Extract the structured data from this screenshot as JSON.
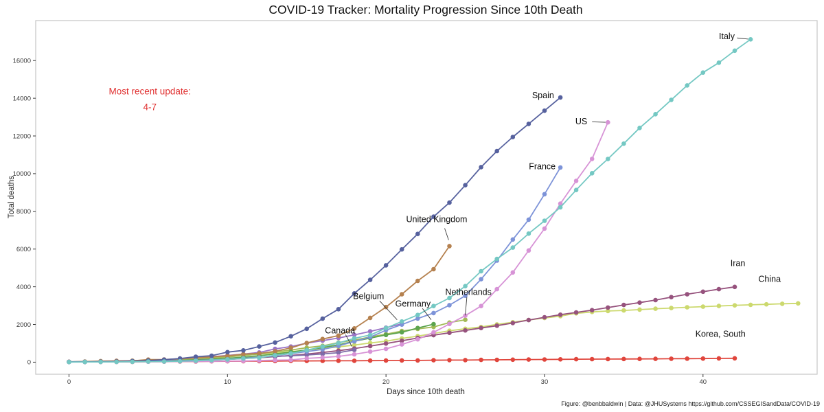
{
  "page": {
    "caption": "Figure: @benbbaldwin | Data: @JHUSystems https://github.com/CSSEGISandData/COVID-19"
  },
  "chart_data": {
    "type": "line",
    "title": "COVID-19 Tracker: Mortality Progression Since 10th Death",
    "xlabel": "Days since 10th death",
    "ylabel": "Total deaths",
    "xlim": [
      -2.1,
      47.2
    ],
    "ylim": [
      -640,
      18120
    ],
    "xticks": [
      0,
      10,
      20,
      30,
      40
    ],
    "yticks": [
      0,
      2000,
      4000,
      6000,
      8000,
      10000,
      12000,
      14000,
      16000
    ],
    "grid": false,
    "marker": "point",
    "x_meaning": "days since 10th death (one point per day, starting at day 0)",
    "annotation": {
      "lines": [
        "Most recent update:",
        "4-7"
      ],
      "x": 5.1,
      "y": 14210,
      "color": "#e03030"
    },
    "series": [
      {
        "name": "Korea, South",
        "color": "#e0453c",
        "values": [
          12,
          13,
          13,
          16,
          17,
          28,
          28,
          35,
          35,
          44,
          50,
          53,
          54,
          60,
          66,
          66,
          72,
          75,
          75,
          81,
          84,
          91,
          94,
          102,
          111,
          111,
          120,
          126,
          131,
          139,
          144,
          152,
          158,
          162,
          165,
          169,
          174,
          177,
          183,
          186,
          192,
          200,
          204
        ],
        "label": {
          "text": "Korea, South",
          "x": 41.1,
          "y": 1500,
          "anchor": "middle"
        }
      },
      {
        "name": "China",
        "color": "#ccd96e",
        "values": [
          17,
          25,
          41,
          56,
          80,
          106,
          132,
          170,
          213,
          259,
          304,
          361,
          425,
          490,
          563,
          637,
          722,
          811,
          908,
          1016,
          1113,
          1259,
          1380,
          1523,
          1665,
          1770,
          1868,
          2004,
          2118,
          2236,
          2345,
          2442,
          2592,
          2663,
          2715,
          2744,
          2788,
          2835,
          2870,
          2912,
          2945,
          2981,
          3012,
          3042,
          3070,
          3097,
          3119
        ],
        "label": {
          "text": "China",
          "x": 44.2,
          "y": 4410,
          "anchor": "middle"
        }
      },
      {
        "name": "Iran",
        "color": "#96527d",
        "values": [
          19,
          26,
          34,
          43,
          54,
          66,
          77,
          92,
          107,
          124,
          145,
          194,
          237,
          291,
          354,
          429,
          514,
          611,
          724,
          853,
          988,
          1135,
          1284,
          1433,
          1556,
          1685,
          1812,
          1934,
          2077,
          2234,
          2378,
          2517,
          2640,
          2757,
          2898,
          3036,
          3160,
          3294,
          3452,
          3603,
          3739,
          3872,
          3993
        ],
        "label": {
          "text": "Iran",
          "x": 42.2,
          "y": 5250,
          "anchor": "middle"
        }
      },
      {
        "name": "Canada",
        "color": "#7e6ba8",
        "values": [
          20,
          25,
          30,
          35,
          54,
          64,
          80,
          101,
          120,
          151,
          173,
          218,
          259,
          308,
          339,
          381,
          433,
          503,
          653
        ],
        "label": {
          "text": "Canada",
          "x": 17.1,
          "y": 1680,
          "anchor": "middle"
        },
        "leader": [
          17.45,
          1460,
          17.85,
          830
        ]
      },
      {
        "name": "Netherlands",
        "color": "#a3bb56",
        "values": [
          12,
          20,
          24,
          43,
          58,
          76,
          106,
          136,
          179,
          213,
          276,
          356,
          434,
          546,
          639,
          771,
          864,
          1039,
          1173,
          1339,
          1487,
          1651,
          1766,
          1867,
          2101,
          2248
        ],
        "label": {
          "text": "Netherlands",
          "x": 25.2,
          "y": 3720,
          "anchor": "middle"
        },
        "leader": [
          25.1,
          3450,
          25.0,
          2480
        ]
      },
      {
        "name": "Germany",
        "color": "#5ca44f",
        "values": [
          11,
          17,
          24,
          28,
          44,
          67,
          84,
          94,
          123,
          157,
          206,
          267,
          342,
          433,
          533,
          645,
          775,
          920,
          1107,
          1275,
          1444,
          1584,
          1810,
          2016
        ],
        "label": {
          "text": "Germany",
          "x": 21.7,
          "y": 3100,
          "anchor": "middle"
        },
        "leader": [
          22.3,
          2850,
          22.85,
          2250
        ]
      },
      {
        "name": "Belgium",
        "color": "#9b74c6",
        "values": [
          14,
          21,
          37,
          67,
          75,
          88,
          122,
          178,
          220,
          289,
          353,
          431,
          513,
          705,
          828,
          1011,
          1143,
          1283,
          1447,
          1632,
          1828,
          2035
        ],
        "label": {
          "text": "Belgium",
          "x": 18.9,
          "y": 3500,
          "anchor": "middle"
        },
        "leader": [
          19.6,
          3250,
          20.7,
          2250
        ]
      },
      {
        "name": "United Kingdom",
        "color": "#b5814f",
        "values": [
          21,
          35,
          55,
          65,
          71,
          137,
          144,
          177,
          233,
          281,
          335,
          422,
          465,
          578,
          759,
          1019,
          1228,
          1408,
          1789,
          2352,
          2921,
          3605,
          4313,
          4934,
          6159
        ],
        "label": {
          "text": "United Kingdom",
          "x": 23.2,
          "y": 7580,
          "anchor": "middle"
        },
        "leader": [
          23.7,
          7100,
          23.95,
          6480
        ]
      },
      {
        "name": "US",
        "color": "#d793d6",
        "values": [
          11,
          12,
          14,
          17,
          21,
          22,
          28,
          36,
          40,
          47,
          54,
          63,
          85,
          108,
          118,
          200,
          244,
          307,
          417,
          557,
          706,
          942,
          1209,
          1581,
          2026,
          2467,
          2978,
          3873,
          4757,
          5926,
          7087,
          8407,
          9619,
          10783,
          12722
        ],
        "label": {
          "text": "US",
          "x": 32.7,
          "y": 12760,
          "anchor": "end"
        },
        "leader": [
          33.0,
          12750,
          33.85,
          12725
        ]
      },
      {
        "name": "France",
        "color": "#7d93d8",
        "values": [
          10,
          12,
          19,
          28,
          33,
          48,
          61,
          79,
          91,
          120,
          149,
          200,
          244,
          360,
          450,
          562,
          674,
          860,
          1100,
          1331,
          1696,
          1995,
          2314,
          2606,
          3024,
          3523,
          4403,
          5387,
          6507,
          7560,
          8911,
          10328
        ],
        "label": {
          "text": "France",
          "x": 30.7,
          "y": 10380,
          "anchor": "end"
        }
      },
      {
        "name": "Spain",
        "color": "#56619e",
        "values": [
          14,
          17,
          28,
          35,
          54,
          86,
          133,
          195,
          289,
          342,
          533,
          623,
          830,
          1043,
          1375,
          1772,
          2311,
          2808,
          3647,
          4365,
          5138,
          5982,
          6803,
          7716,
          8464,
          9387,
          10348,
          11198,
          11947,
          12641,
          13341,
          14045
        ],
        "label": {
          "text": "Spain",
          "x": 30.6,
          "y": 14150,
          "anchor": "end"
        }
      },
      {
        "name": "Italy",
        "color": "#74c8c3",
        "values": [
          10,
          11,
          12,
          17,
          21,
          29,
          34,
          52,
          79,
          107,
          148,
          197,
          233,
          366,
          463,
          631,
          827,
          1016,
          1266,
          1441,
          1809,
          2158,
          2503,
          2978,
          3405,
          4032,
          4825,
          5476,
          6077,
          6820,
          7503,
          8215,
          9134,
          10023,
          10779,
          11591,
          12428,
          13155,
          13915,
          14681,
          15362,
          15887,
          16523,
          17127
        ],
        "label": {
          "text": "Italy",
          "x": 42.0,
          "y": 17290,
          "anchor": "end"
        },
        "leader": [
          42.15,
          17200,
          42.85,
          17140
        ]
      }
    ]
  }
}
